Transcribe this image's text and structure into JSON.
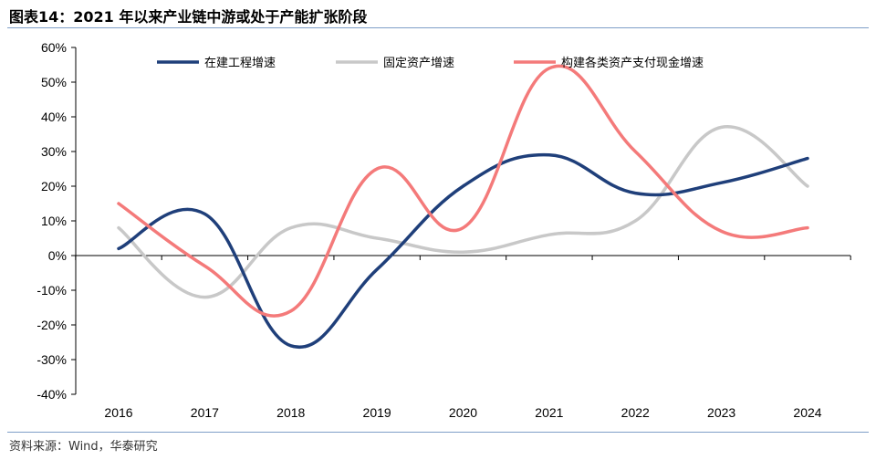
{
  "header": {
    "title": "图表14：2021 年以来产业链中游或处于产能扩张阶段"
  },
  "footer": {
    "source": "资料来源：Wind，华泰研究"
  },
  "chart_data": {
    "type": "line",
    "title": "图表14：2021 年以来产业链中游或处于产能扩张阶段",
    "xlabel": "",
    "ylabel": "",
    "categories": [
      "2016",
      "2017",
      "2018",
      "2019",
      "2020",
      "2021",
      "2022",
      "2023",
      "2024"
    ],
    "ylim": [
      -40,
      60
    ],
    "yticks": [
      -40,
      -30,
      -20,
      -10,
      0,
      10,
      20,
      30,
      40,
      50,
      60
    ],
    "ytick_labels": [
      "-40%",
      "-30%",
      "-20%",
      "-10%",
      "0%",
      "10%",
      "20%",
      "30%",
      "40%",
      "50%",
      "60%"
    ],
    "grid": false,
    "legend_position": "top",
    "series": [
      {
        "name": "在建工程增速",
        "color": "#1f3f7a",
        "values": [
          2,
          12,
          -26,
          -4,
          20,
          29,
          18,
          21,
          28
        ]
      },
      {
        "name": "固定资产增速",
        "color": "#c8c8c8",
        "values": [
          8,
          -12,
          8,
          5,
          1,
          6,
          10,
          37,
          20
        ]
      },
      {
        "name": "构建各类资产支付现金增速",
        "color": "#f47a7a",
        "values": [
          15,
          -3,
          -16,
          25,
          8,
          54,
          30,
          7,
          8
        ]
      }
    ]
  }
}
